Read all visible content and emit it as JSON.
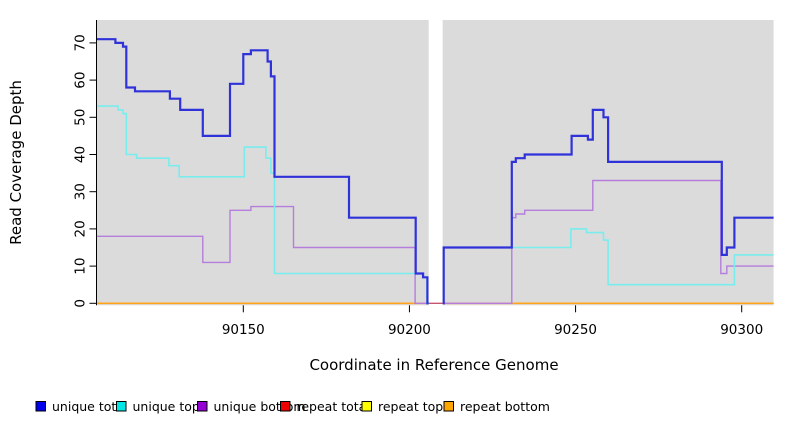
{
  "chart_data": {
    "type": "line",
    "subtype": "step",
    "title": "",
    "xlabel": "Coordinate in Reference Genome",
    "ylabel": "Read Coverage Depth",
    "xlim": [
      90105.8,
      90309.6
    ],
    "ylim": [
      0,
      76
    ],
    "grid": "off",
    "panel_bg": "#DBDBDB",
    "gap": {
      "x0": 90205.8,
      "x1": 90210.0
    },
    "panels": [
      {
        "x0": 90105.8,
        "x1": 90205.8
      },
      {
        "x0": 90210.0,
        "x1": 90309.6
      }
    ],
    "x_axis": {
      "ticks": [
        {
          "value": 90150,
          "label": "90150"
        },
        {
          "value": 90200,
          "label": "90200"
        },
        {
          "value": 90250,
          "label": "90250"
        },
        {
          "value": 90300,
          "label": "90300"
        }
      ]
    },
    "y_axis": {
      "ticks": [
        {
          "value": 0,
          "label": "0"
        },
        {
          "value": 10,
          "label": "10"
        },
        {
          "value": 20,
          "label": "20"
        },
        {
          "value": 30,
          "label": "30"
        },
        {
          "value": 40,
          "label": "40"
        },
        {
          "value": 50,
          "label": "50"
        },
        {
          "value": 60,
          "label": "60"
        },
        {
          "value": 70,
          "label": "70"
        }
      ]
    },
    "series": [
      {
        "name": "repeat total",
        "color": "#C8566B",
        "line_width": 1.3,
        "segments": [
          {
            "pts": [
              [
                90105.8,
                0
              ]
            ],
            "end": 90309.6
          }
        ]
      },
      {
        "name": "repeat top",
        "color": "#FFFF00",
        "line_width": 1.0,
        "segments": [
          {
            "pts": [
              [
                90105.8,
                0
              ]
            ],
            "end": 90205.8
          },
          {
            "pts": [
              [
                90210.0,
                0
              ]
            ],
            "end": 90309.6
          }
        ]
      },
      {
        "name": "repeat bottom",
        "color": "#FFA41B",
        "line_width": 1.7,
        "segments": [
          {
            "pts": [
              [
                90105.8,
                0
              ]
            ],
            "end": 90205.8
          },
          {
            "pts": [
              [
                90210.0,
                0
              ]
            ],
            "end": 90309.6
          }
        ]
      },
      {
        "name": "unique bottom",
        "color": "#B57EDC",
        "line_width": 1.4,
        "segments": [
          {
            "pts": [
              [
                90105.8,
                18
              ],
              [
                90137.8,
                11
              ],
              [
                90146,
                25
              ],
              [
                90152.3,
                26
              ],
              [
                90165.1,
                15
              ],
              [
                90201.7,
                0
              ]
            ],
            "end": 90205.8
          },
          {
            "pts": [
              [
                90210.0,
                0
              ],
              [
                90230.8,
                23
              ],
              [
                90232,
                24
              ],
              [
                90234.7,
                25
              ],
              [
                90255.2,
                33
              ],
              [
                90293.7,
                8
              ],
              [
                90295.5,
                10
              ]
            ],
            "end": 90309.6
          }
        ]
      },
      {
        "name": "unique top",
        "color": "#79EDED",
        "line_width": 1.6,
        "segments": [
          {
            "pts": [
              [
                90105.8,
                53
              ],
              [
                90112.3,
                52
              ],
              [
                90113.8,
                51
              ],
              [
                90114.8,
                40
              ],
              [
                90117.9,
                39
              ],
              [
                90127.6,
                37
              ],
              [
                90130.7,
                34
              ],
              [
                90150.3,
                42
              ],
              [
                90156.8,
                39
              ],
              [
                90158.3,
                35
              ],
              [
                90159.4,
                8
              ],
              [
                90203.9,
                7
              ],
              [
                90205.3,
                0
              ]
            ],
            "end": 90205.8
          },
          {
            "pts": [
              [
                90210.0,
                15
              ],
              [
                90248.6,
                20
              ],
              [
                90253.3,
                19
              ],
              [
                90258.4,
                17
              ],
              [
                90259.8,
                5
              ],
              [
                90297.8,
                13
              ]
            ],
            "end": 90309.6
          }
        ]
      },
      {
        "name": "unique total",
        "color": "#3032D9",
        "line_width": 2.2,
        "segments": [
          {
            "pts": [
              [
                90105.8,
                71
              ],
              [
                90111.5,
                70
              ],
              [
                90113.8,
                69
              ],
              [
                90114.8,
                58
              ],
              [
                90117.4,
                57
              ],
              [
                90127.9,
                55
              ],
              [
                90131,
                52
              ],
              [
                90137.8,
                45
              ],
              [
                90146,
                59
              ],
              [
                90150,
                67
              ],
              [
                90152.3,
                68
              ],
              [
                90157.3,
                65
              ],
              [
                90158.3,
                61
              ],
              [
                90159.4,
                34
              ],
              [
                90181.8,
                23
              ],
              [
                90201.9,
                8
              ],
              [
                90204.1,
                7
              ],
              [
                90205.4,
                0
              ]
            ],
            "end": 90205.8
          },
          {
            "pts": [
              [
                90210.0,
                0
              ],
              [
                90210.3,
                15
              ],
              [
                90230.8,
                38
              ],
              [
                90232,
                39
              ],
              [
                90234.7,
                40
              ],
              [
                90248.8,
                45
              ],
              [
                90253.7,
                44
              ],
              [
                90255.2,
                52
              ],
              [
                90258.4,
                50
              ],
              [
                90259.8,
                38
              ],
              [
                90294,
                13
              ],
              [
                90295.5,
                15
              ],
              [
                90297.8,
                23
              ]
            ],
            "end": 90309.6
          }
        ]
      }
    ],
    "legend": {
      "position": "bottom",
      "items": [
        {
          "label": "unique total",
          "color": "#0000EE"
        },
        {
          "label": "unique top",
          "color": "#00E6E6"
        },
        {
          "label": "unique bottom",
          "color": "#9400D3"
        },
        {
          "label": "repeat total",
          "color": "#EE0000"
        },
        {
          "label": "repeat top",
          "color": "#FFFF00"
        },
        {
          "label": "repeat bottom",
          "color": "#FFA500"
        }
      ]
    }
  }
}
